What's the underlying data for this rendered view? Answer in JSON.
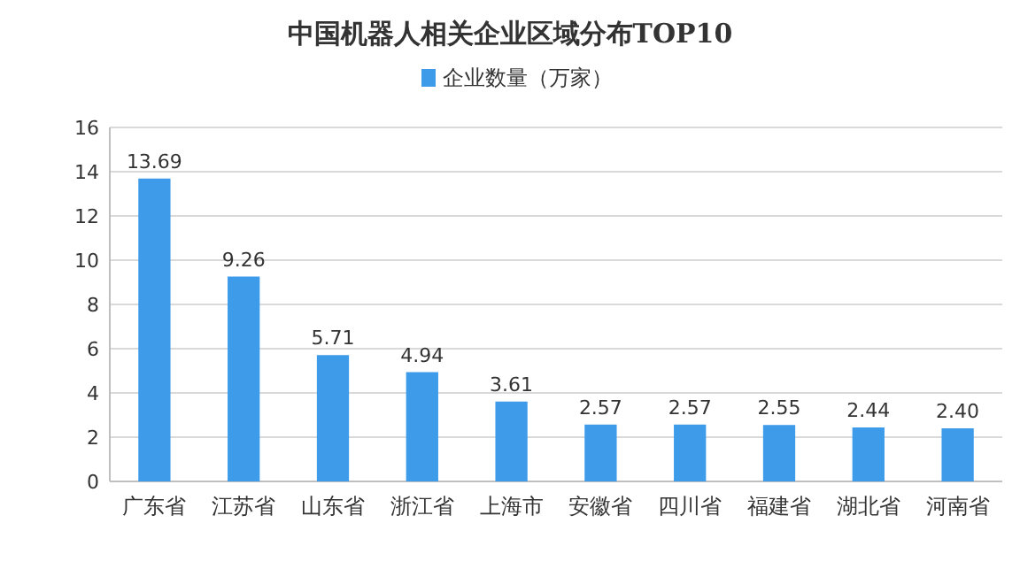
{
  "chart_data": {
    "type": "bar",
    "title": "中国机器人相关企业区域分布TOP10",
    "categories": [
      "广东省",
      "江苏省",
      "山东省",
      "浙江省",
      "上海市",
      "安徽省",
      "四川省",
      "福建省",
      "湖北省",
      "河南省"
    ],
    "series": [
      {
        "name": "企业数量（万家）",
        "color": "#3d9be9",
        "values": [
          13.69,
          9.26,
          5.71,
          4.94,
          3.61,
          2.57,
          2.57,
          2.55,
          2.44,
          2.4
        ]
      }
    ],
    "value_labels": [
      "13.69",
      "9.26",
      "5.71",
      "4.94",
      "3.61",
      "2.57",
      "2.57",
      "2.55",
      "2.44",
      "2.40"
    ],
    "ylim": [
      0,
      16
    ],
    "yticks": [
      0,
      2,
      4,
      6,
      8,
      10,
      12,
      14,
      16
    ],
    "grid": "y",
    "legend": "top"
  }
}
